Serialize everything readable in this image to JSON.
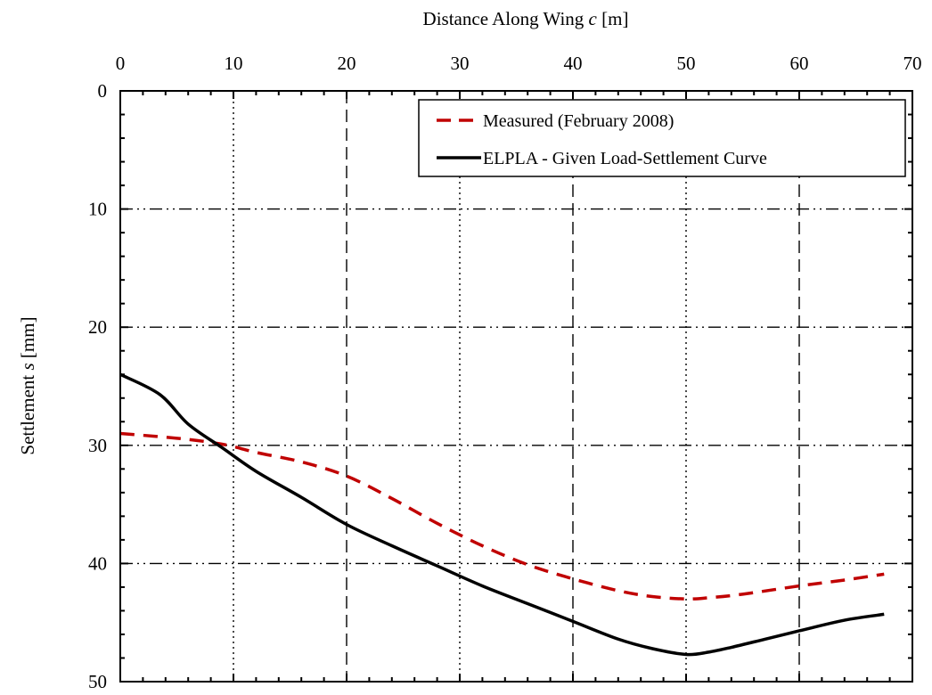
{
  "chart_data": {
    "type": "line",
    "xlabel": {
      "prefix": "Distance Along Wing ",
      "var": "c",
      "unit": " [m]"
    },
    "ylabel": {
      "prefix": "Settlement ",
      "var": "s",
      "unit": " [mm]"
    },
    "xlim": [
      0,
      70
    ],
    "ylim": [
      0,
      50
    ],
    "y_inverted": true,
    "x_axis_position": "top",
    "x_ticks": [
      0,
      10,
      20,
      30,
      40,
      50,
      60,
      70
    ],
    "x_tick_labels": [
      "0",
      "10",
      "20",
      "30",
      "40",
      "50",
      "60",
      "70"
    ],
    "y_ticks": [
      0,
      10,
      20,
      30,
      40,
      50
    ],
    "y_tick_labels": [
      "0",
      "10",
      "20",
      "30",
      "40",
      "50"
    ],
    "grid": true,
    "legend_position": "top-right",
    "series": [
      {
        "name": "Measured (February 2008)",
        "color": "#c00000",
        "style": "dashed",
        "x": [
          0,
          5,
          9,
          12,
          16,
          20,
          24,
          28,
          32,
          36,
          40,
          44,
          47,
          50,
          52,
          55,
          60,
          64,
          67.5
        ],
        "y": [
          29,
          29.4,
          29.9,
          30.6,
          31.4,
          32.6,
          34.5,
          36.6,
          38.5,
          40.1,
          41.3,
          42.3,
          42.8,
          43.0,
          42.9,
          42.6,
          41.9,
          41.4,
          40.9
        ]
      },
      {
        "name": "ELPLA - Given Load-Settlement Curve",
        "color": "#000000",
        "style": "solid",
        "x": [
          0,
          3.5,
          6,
          9,
          12,
          16,
          20,
          24,
          28,
          32,
          36,
          40,
          44,
          47,
          50,
          52,
          54,
          57,
          60,
          64,
          67.5
        ],
        "y": [
          24,
          25.7,
          28.2,
          30.2,
          32.2,
          34.4,
          36.7,
          38.5,
          40.2,
          41.9,
          43.4,
          44.9,
          46.4,
          47.2,
          47.7,
          47.5,
          47.1,
          46.4,
          45.7,
          44.8,
          44.3
        ]
      }
    ]
  }
}
